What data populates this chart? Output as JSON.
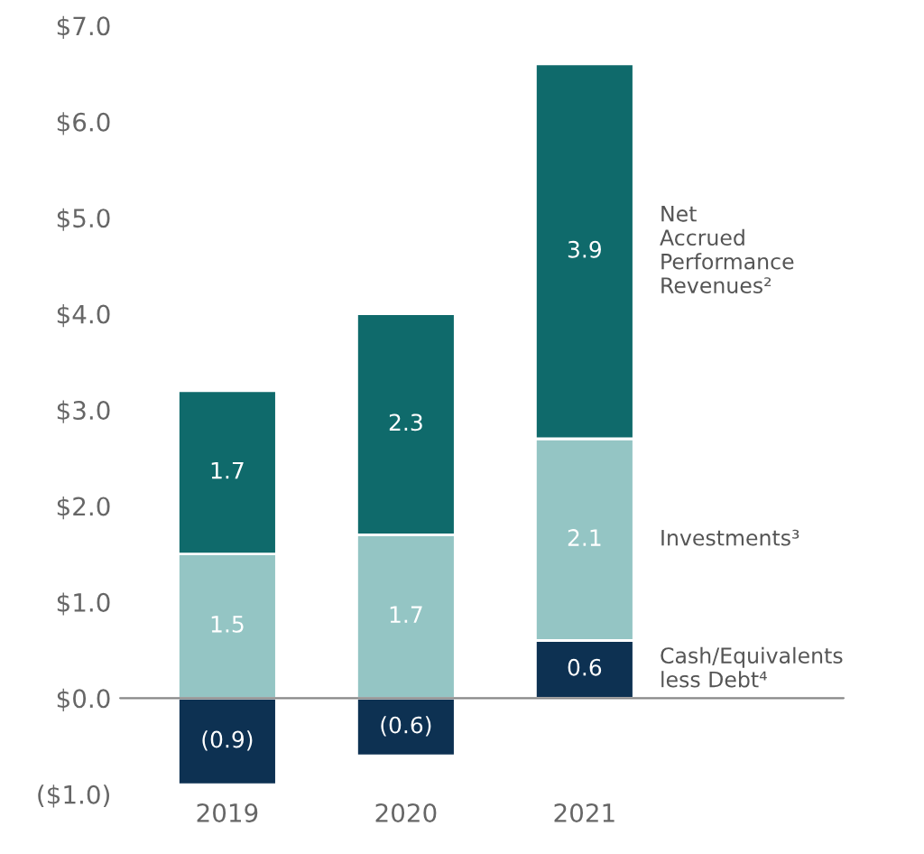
{
  "chart_data": {
    "type": "bar",
    "stacked": true,
    "categories": [
      "2019",
      "2020",
      "2021"
    ],
    "series": [
      {
        "name": "Cash/Equivalents\nless Debt⁴",
        "color": "#0d3152",
        "values": [
          -0.9,
          -0.6,
          0.6
        ],
        "value_labels": [
          "(0.9)",
          "(0.6)",
          "0.6"
        ]
      },
      {
        "name": "Investments³",
        "color": "#94c5c4",
        "values": [
          1.5,
          1.7,
          2.1
        ],
        "value_labels": [
          "1.5",
          "1.7",
          "2.1"
        ]
      },
      {
        "name": "Net\nAccrued\nPerformance\nRevenues²",
        "color": "#0f6a6b",
        "values": [
          1.7,
          2.3,
          3.9
        ],
        "value_labels": [
          "1.7",
          "2.3",
          "3.9"
        ]
      }
    ],
    "ylim": [
      -1.0,
      7.0
    ],
    "yticks": [
      {
        "value": -1.0,
        "label": "($1.0)"
      },
      {
        "value": 0.0,
        "label": "$0.0"
      },
      {
        "value": 1.0,
        "label": "$1.0"
      },
      {
        "value": 2.0,
        "label": "$2.0"
      },
      {
        "value": 3.0,
        "label": "$3.0"
      },
      {
        "value": 4.0,
        "label": "$4.0"
      },
      {
        "value": 5.0,
        "label": "$5.0"
      },
      {
        "value": 6.0,
        "label": "$6.0"
      },
      {
        "value": 7.0,
        "label": "$7.0"
      }
    ],
    "legend": false
  }
}
